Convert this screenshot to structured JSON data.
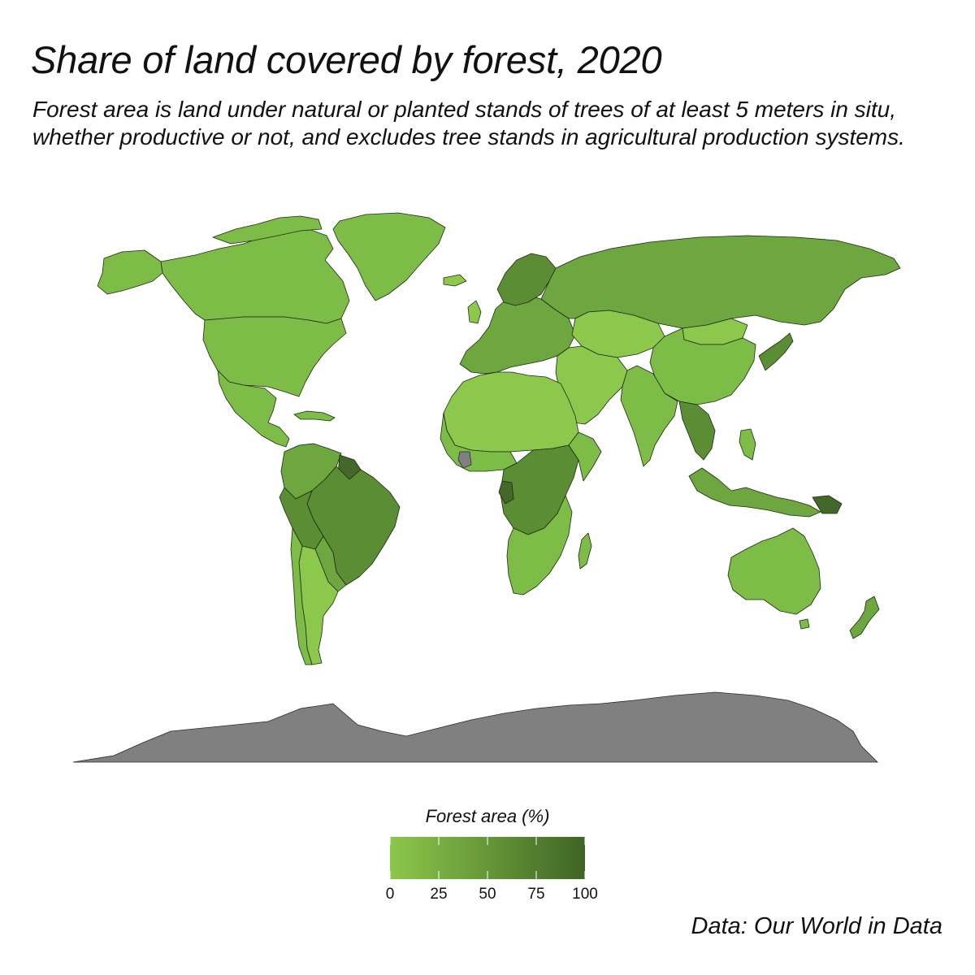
{
  "title": "Share of land covered by forest, 2020",
  "subtitle": "Forest area is land under natural or planted stands of trees of at least 5 meters in situ, whether productive or not, and excludes tree stands in agricultural production systems.",
  "legend": {
    "title": "Forest area (%)",
    "ticks": [
      "0",
      "25",
      "50",
      "75",
      "100"
    ],
    "tick_values": [
      0,
      25,
      50,
      75,
      100
    ],
    "scale_min": 0,
    "scale_max": 100,
    "color_low": "#8cc84b",
    "color_high": "#3f6425",
    "missing_color": "#808080"
  },
  "caption": "Data: Our World in Data",
  "colors": {
    "lowest": "#8cc84b",
    "low": "#7dbd47",
    "mid": "#6ea63f",
    "high": "#5a8d34",
    "highest": "#43682a",
    "no_data": "#808080"
  },
  "chart_data": {
    "type": "choropleth",
    "variable": "Forest area (%)",
    "year": 2020,
    "range": [
      0,
      100
    ],
    "regions": [
      {
        "name": "Greenland",
        "value": 0
      },
      {
        "name": "Canada",
        "value": 38
      },
      {
        "name": "United States",
        "value": 34
      },
      {
        "name": "Mexico",
        "value": 34
      },
      {
        "name": "Brazil",
        "value": 59
      },
      {
        "name": "Argentina",
        "value": 10
      },
      {
        "name": "Chile",
        "value": 24
      },
      {
        "name": "Peru",
        "value": 57
      },
      {
        "name": "Bolivia",
        "value": 46
      },
      {
        "name": "Russia",
        "value": 50
      },
      {
        "name": "Finland",
        "value": 74
      },
      {
        "name": "Sweden",
        "value": 69
      },
      {
        "name": "Norway",
        "value": 33
      },
      {
        "name": "China",
        "value": 23
      },
      {
        "name": "Mongolia",
        "value": 9
      },
      {
        "name": "Kazakhstan",
        "value": 1
      },
      {
        "name": "India",
        "value": 24
      },
      {
        "name": "Saudi Arabia",
        "value": 0
      },
      {
        "name": "Algeria",
        "value": 1
      },
      {
        "name": "Libya",
        "value": 0
      },
      {
        "name": "Egypt",
        "value": 0
      },
      {
        "name": "DR Congo",
        "value": 55
      },
      {
        "name": "Gabon",
        "value": 91
      },
      {
        "name": "Suriname",
        "value": 97
      },
      {
        "name": "Guyana",
        "value": 93
      },
      {
        "name": "Angola",
        "value": 53
      },
      {
        "name": "Zambia",
        "value": 60
      },
      {
        "name": "South Africa",
        "value": 14
      },
      {
        "name": "Madagascar",
        "value": 21
      },
      {
        "name": "Australia",
        "value": 17
      },
      {
        "name": "New Zealand",
        "value": 38
      },
      {
        "name": "Japan",
        "value": 68
      },
      {
        "name": "Indonesia",
        "value": 49
      },
      {
        "name": "Papua New Guinea",
        "value": 79
      },
      {
        "name": "Malaysia",
        "value": 58
      },
      {
        "name": "Laos",
        "value": 72
      },
      {
        "name": "Antarctica",
        "value": null
      },
      {
        "name": "Côte d'Ivoire",
        "value": null
      }
    ]
  }
}
